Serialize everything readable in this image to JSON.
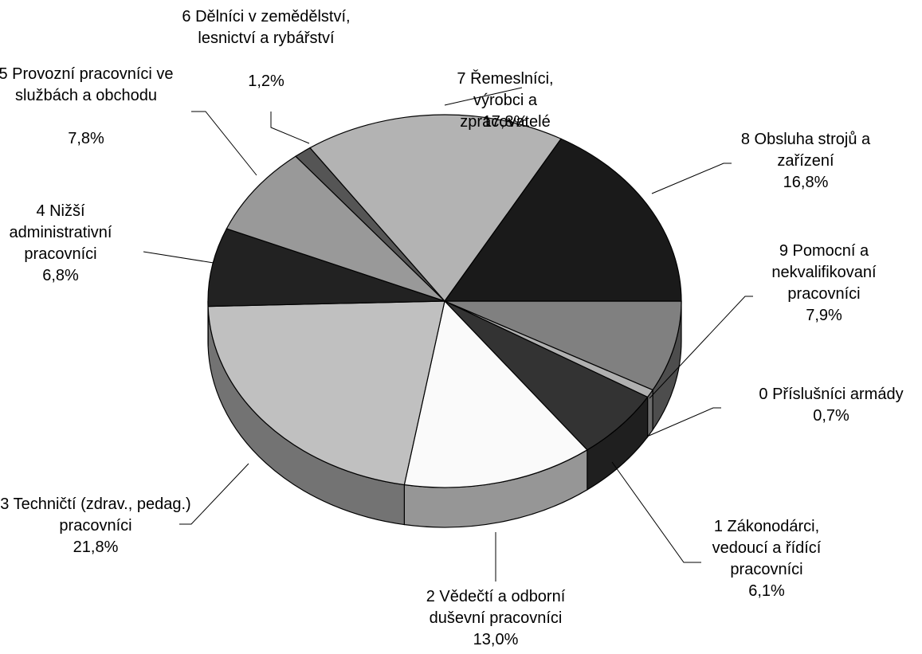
{
  "chart_data": {
    "type": "pie",
    "categories": [
      "9  Pomocní a nekvalifikovaní pracovníci",
      "0  Příslušníci armády",
      "1  Zákonodárci, vedoucí a řídící pracovníci",
      "2  Vědečtí a odborní duševní pracovníci",
      "3  Techničtí (zdrav., pedag.) pracovníci",
      "4  Nižší administrativní pracovníci",
      "5  Provozní pracovníci ve službách a obchodu",
      "6  Dělníci v zemědělství, lesnictví a rybářství",
      "7  Řemeslníci, výrobci a zpracovatelé",
      "8  Obsluha strojů a zařízení"
    ],
    "values": [
      7.9,
      0.7,
      6.1,
      13,
      21.8,
      6.8,
      7.8,
      1.2,
      17.8,
      16.8
    ],
    "value_labels": [
      "7,9%",
      "0,7%",
      "6,1%",
      "13,0%",
      "21,8%",
      "6,8%",
      "7,8%",
      "1,2%",
      "17,8%",
      "16,8%"
    ],
    "colors": [
      "#808080",
      "#b0b0b0",
      "#333333",
      "#fafafa",
      "#c0c0c0",
      "#222222",
      "#999999",
      "#555555",
      "#b3b3b3",
      "#1a1a1a"
    ]
  }
}
